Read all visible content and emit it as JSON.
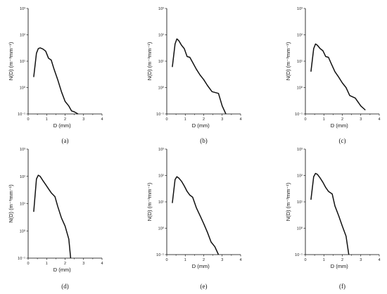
{
  "chart_data": [
    {
      "type": "line",
      "panel": "(a)",
      "xlabel": "D (mm)",
      "ylabel": "N(D) (m⁻³mm⁻¹)",
      "xlim": [
        0,
        4
      ],
      "ylim": [
        0.1,
        1000
      ],
      "yscale": "log",
      "xticks": [
        "0",
        "1",
        "2",
        "3",
        "4"
      ],
      "yticks": [
        "10⁻¹",
        "10⁰",
        "10¹",
        "10²",
        "10³"
      ],
      "series": [
        {
          "x": [
            0.3,
            0.45,
            0.55,
            0.65,
            0.8,
            0.95,
            1.1,
            1.25,
            1.4,
            1.6,
            1.8,
            2.0,
            2.2,
            2.35,
            2.5,
            2.7
          ],
          "y": [
            2.5,
            20,
            30,
            32,
            29,
            24,
            13,
            11,
            5,
            2,
            0.7,
            0.3,
            0.2,
            0.13,
            0.12,
            0.1
          ]
        }
      ]
    },
    {
      "type": "line",
      "panel": "(b)",
      "xlabel": "D (mm)",
      "ylabel": "N(D) (m⁻³mm⁻¹)",
      "xlim": [
        0,
        4
      ],
      "ylim": [
        0.1,
        1000
      ],
      "yscale": "log",
      "xticks": [
        "0",
        "1",
        "2",
        "3",
        "4"
      ],
      "yticks": [
        "10⁻¹",
        "10⁰",
        "10¹",
        "10²",
        "10³"
      ],
      "series": [
        {
          "x": [
            0.3,
            0.45,
            0.55,
            0.65,
            0.8,
            0.95,
            1.1,
            1.25,
            1.4,
            1.6,
            1.8,
            2.0,
            2.2,
            2.45,
            2.8,
            3.0,
            3.2
          ],
          "y": [
            6,
            45,
            70,
            60,
            40,
            30,
            15,
            14,
            9,
            5,
            3,
            2,
            1.2,
            0.7,
            0.6,
            0.2,
            0.1
          ]
        }
      ]
    },
    {
      "type": "line",
      "panel": "(c)",
      "xlabel": "D (mm)",
      "ylabel": "N(D) (m⁻³mm⁻¹)",
      "xlim": [
        0,
        4
      ],
      "ylim": [
        0.1,
        1000
      ],
      "yscale": "log",
      "xticks": [
        "0",
        "1",
        "2",
        "3",
        "4"
      ],
      "yticks": [
        "10⁻¹",
        "10⁰",
        "10¹",
        "10²",
        "10³"
      ],
      "series": [
        {
          "x": [
            0.3,
            0.45,
            0.55,
            0.65,
            0.8,
            0.95,
            1.1,
            1.25,
            1.4,
            1.6,
            1.8,
            2.0,
            2.2,
            2.4,
            2.7,
            3.0,
            3.25
          ],
          "y": [
            4,
            30,
            45,
            40,
            30,
            25,
            15,
            14,
            8,
            4,
            2.5,
            1.5,
            1,
            0.5,
            0.4,
            0.2,
            0.14
          ]
        }
      ]
    },
    {
      "type": "line",
      "panel": "(d)",
      "xlabel": "D (mm)",
      "ylabel": "N(D) (m⁻³mm⁻¹)",
      "xlim": [
        0,
        4
      ],
      "ylim": [
        0.1,
        1000
      ],
      "yscale": "log",
      "xticks": [
        "0",
        "1",
        "2",
        "3",
        "4"
      ],
      "yticks": [
        "10⁻¹",
        "10⁰",
        "10¹",
        "10²",
        "10³"
      ],
      "series": [
        {
          "x": [
            0.3,
            0.45,
            0.55,
            0.65,
            0.8,
            0.95,
            1.1,
            1.25,
            1.45,
            1.6,
            1.8,
            2.0,
            2.2,
            2.3
          ],
          "y": [
            5,
            80,
            110,
            100,
            70,
            50,
            35,
            25,
            18,
            8,
            3,
            1.5,
            0.5,
            0.1
          ]
        }
      ]
    },
    {
      "type": "line",
      "panel": "(e)",
      "xlabel": "D (mm)",
      "ylabel": "N(D) (m⁻³mm⁻¹)",
      "xlim": [
        0,
        4
      ],
      "ylim": [
        0.1,
        1000
      ],
      "yscale": "log",
      "xticks": [
        "0",
        "1",
        "2",
        "3",
        "4"
      ],
      "yticks": [
        "10⁻¹",
        "10⁰",
        "10¹",
        "10²",
        "10³"
      ],
      "series": [
        {
          "x": [
            0.3,
            0.45,
            0.55,
            0.65,
            0.8,
            0.95,
            1.1,
            1.25,
            1.4,
            1.6,
            1.8,
            2.0,
            2.2,
            2.4,
            2.6,
            2.8
          ],
          "y": [
            9,
            70,
            90,
            80,
            60,
            40,
            25,
            18,
            15,
            6,
            3,
            1.5,
            0.7,
            0.3,
            0.2,
            0.1
          ]
        }
      ]
    },
    {
      "type": "line",
      "panel": "(f)",
      "xlabel": "D (mm)",
      "ylabel": "N(D) (m⁻³mm⁻¹)",
      "xlim": [
        0,
        4
      ],
      "ylim": [
        0.1,
        1000
      ],
      "yscale": "log",
      "xticks": [
        "0",
        "1",
        "2",
        "3",
        "4"
      ],
      "yticks": [
        "10⁻¹",
        "10⁰",
        "10¹",
        "10²",
        "10³"
      ],
      "series": [
        {
          "x": [
            0.3,
            0.45,
            0.55,
            0.65,
            0.8,
            0.95,
            1.1,
            1.25,
            1.45,
            1.6,
            1.8,
            2.0,
            2.2,
            2.35
          ],
          "y": [
            12,
            90,
            120,
            110,
            80,
            55,
            35,
            25,
            20,
            7,
            3,
            1.2,
            0.5,
            0.1
          ]
        }
      ]
    }
  ]
}
